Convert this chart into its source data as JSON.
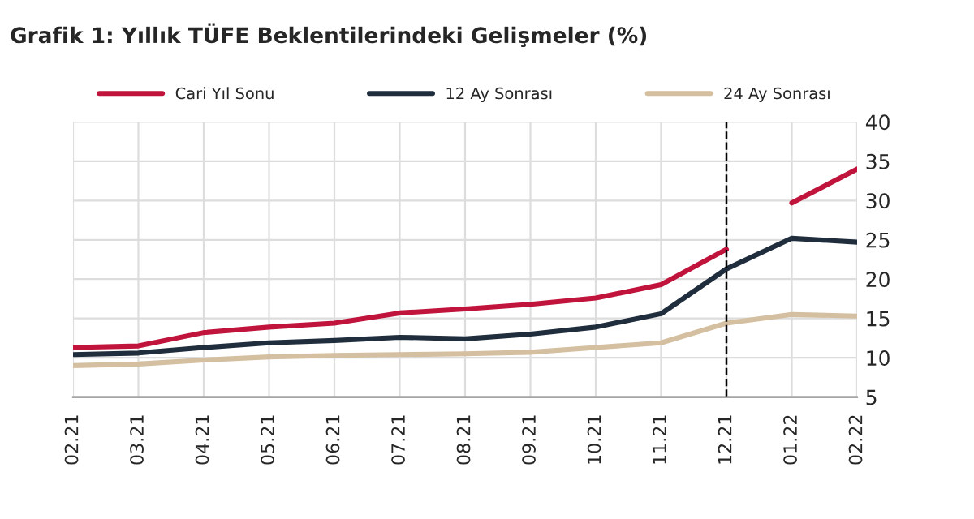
{
  "chart_data": {
    "type": "line",
    "title": "Grafik 1: Yıllık TÜFE Beklentilerindeki Gelişmeler (%)",
    "categories": [
      "02.21",
      "03.21",
      "04.21",
      "05.21",
      "06.21",
      "07.21",
      "08.21",
      "09.21",
      "10.21",
      "11.21",
      "12.21",
      "01.22",
      "02.22"
    ],
    "series": [
      {
        "name": "Cari Yıl Sonu",
        "color": "#c0143c",
        "values": [
          11.3,
          11.5,
          13.2,
          13.9,
          14.4,
          15.7,
          16.2,
          16.8,
          17.6,
          19.3,
          23.8,
          null,
          null
        ]
      },
      {
        "color": "#c0143c",
        "values": [
          null,
          null,
          null,
          null,
          null,
          null,
          null,
          null,
          null,
          null,
          null,
          29.7,
          34.0
        ]
      },
      {
        "name": "12 Ay Sonrası",
        "color": "#1f2d3d",
        "values": [
          10.4,
          10.6,
          11.3,
          11.9,
          12.2,
          12.6,
          12.4,
          13.0,
          13.9,
          15.6,
          21.3,
          25.2,
          24.7
        ]
      },
      {
        "name": "24 Ay Sonrası",
        "color": "#d4bfa0",
        "values": [
          9.0,
          9.2,
          9.7,
          10.1,
          10.3,
          10.4,
          10.5,
          10.7,
          11.3,
          11.9,
          14.4,
          15.5,
          15.3
        ]
      }
    ],
    "ylim": [
      5,
      40
    ],
    "yticks": [
      5,
      10,
      15,
      20,
      25,
      30,
      35,
      40
    ],
    "ref_lines": [
      {
        "axis": "x",
        "value": "12.21",
        "color": "#000000",
        "line_style": "dashed"
      }
    ],
    "grid": true,
    "legend": "top",
    "marker": "none",
    "line_style": "solid"
  }
}
